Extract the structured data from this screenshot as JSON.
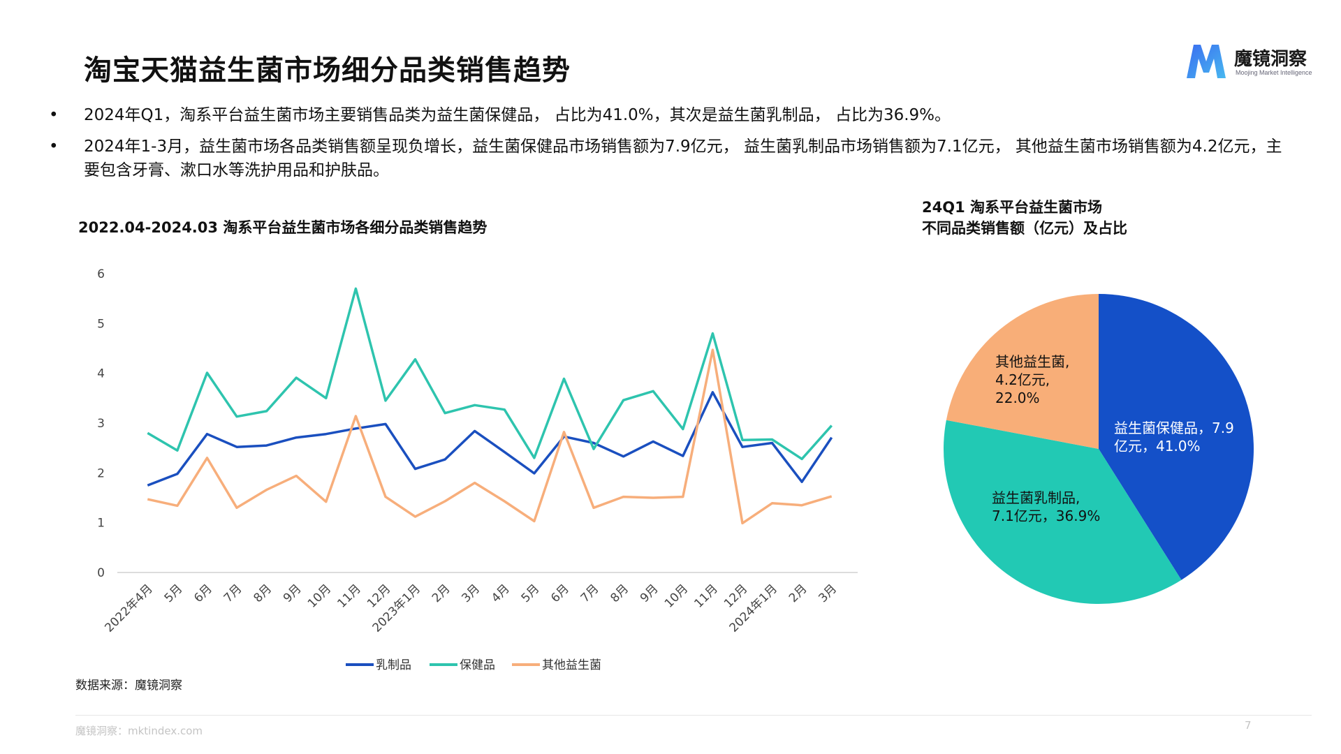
{
  "page": {
    "title": "淘宝天猫益生菌市场细分品类销售趋势",
    "logo_name": "魔镜洞察",
    "logo_sub": "Moojing Market Intelligence",
    "bullets": [
      "2024年Q1，淘系平台益生菌市场主要销售品类为益生菌保健品， 占比为41.0%，其次是益生菌乳制品， 占比为36.9%。",
      "2024年1-3月，益生菌市场各品类销售额呈现负增长，益生菌保健品市场销售额为7.9亿元， 益生菌乳制品市场销售额为7.1亿元， 其他益生菌市场销售额为4.2亿元，主要包含牙膏、漱口水等洗护用品和护肤品。"
    ],
    "bullet_symbol": "•",
    "source": "数据来源：魔镜洞察",
    "footer": "魔镜洞察：mktindex.com",
    "page_number": "7",
    "colors": {
      "dairy": "#1a4fbf",
      "health": "#2ec4ae",
      "other": "#f7ae7b",
      "pie_health": "#1450c8",
      "pie_dairy": "#22c9b4",
      "pie_other": "#f8ae78"
    }
  },
  "chart_data": [
    {
      "type": "line",
      "title": "2022.04-2024.03 淘系平台益生菌市场各细分品类销售趋势",
      "categories": [
        "2022年4月",
        "5月",
        "6月",
        "7月",
        "8月",
        "9月",
        "10月",
        "11月",
        "12月",
        "2023年1月",
        "2月",
        "3月",
        "4月",
        "5月",
        "6月",
        "7月",
        "8月",
        "9月",
        "10月",
        "11月",
        "12月",
        "2024年1月",
        "2月",
        "3月"
      ],
      "series": [
        {
          "name": "乳制品",
          "color": "#1a4fbf",
          "values": [
            1.75,
            1.98,
            2.78,
            2.52,
            2.55,
            2.71,
            2.78,
            2.89,
            2.98,
            2.08,
            2.27,
            2.84,
            2.42,
            1.99,
            2.73,
            2.6,
            2.33,
            2.63,
            2.34,
            3.62,
            2.52,
            2.6,
            1.82,
            2.71
          ]
        },
        {
          "name": "保健品",
          "color": "#2ec4ae",
          "values": [
            2.8,
            2.45,
            4.01,
            3.13,
            3.24,
            3.91,
            3.5,
            5.7,
            3.45,
            4.28,
            3.2,
            3.36,
            3.27,
            2.3,
            3.89,
            2.48,
            3.46,
            3.64,
            2.88,
            4.8,
            2.66,
            2.67,
            2.28,
            2.95
          ]
        },
        {
          "name": "其他益生菌",
          "color": "#f7ae7b",
          "values": [
            1.47,
            1.34,
            2.3,
            1.3,
            1.66,
            1.94,
            1.42,
            3.14,
            1.52,
            1.12,
            1.43,
            1.8,
            1.43,
            1.03,
            2.82,
            1.3,
            1.52,
            1.5,
            1.52,
            4.47,
            0.99,
            1.39,
            1.35,
            1.53
          ]
        }
      ],
      "ylim": [
        0,
        6
      ],
      "yticks": [
        "0",
        "1",
        "2",
        "3",
        "4",
        "5",
        "6"
      ],
      "grid": false,
      "legend": "bottom"
    },
    {
      "type": "pie",
      "title": "24Q1 淘系平台益生菌市场\n不同品类销售额（亿元）及占比",
      "slices": [
        {
          "name": "益生菌保健品",
          "value": 7.9,
          "percent": 41.0,
          "color": "#1450c8",
          "label_lines": [
            "益生菌保健品，7.9",
            "亿元，41.0%"
          ]
        },
        {
          "name": "益生菌乳制品",
          "value": 7.1,
          "percent": 36.9,
          "color": "#22c9b4",
          "label_lines": [
            "益生菌乳制品,",
            "7.1亿元，36.9%"
          ]
        },
        {
          "name": "其他益生菌",
          "value": 4.2,
          "percent": 22.0,
          "color": "#f8ae78",
          "label_lines": [
            "其他益生菌,",
            "4.2亿元,",
            "22.0%"
          ]
        }
      ],
      "start_angle_deg": 0,
      "direction": "clockwise"
    }
  ]
}
